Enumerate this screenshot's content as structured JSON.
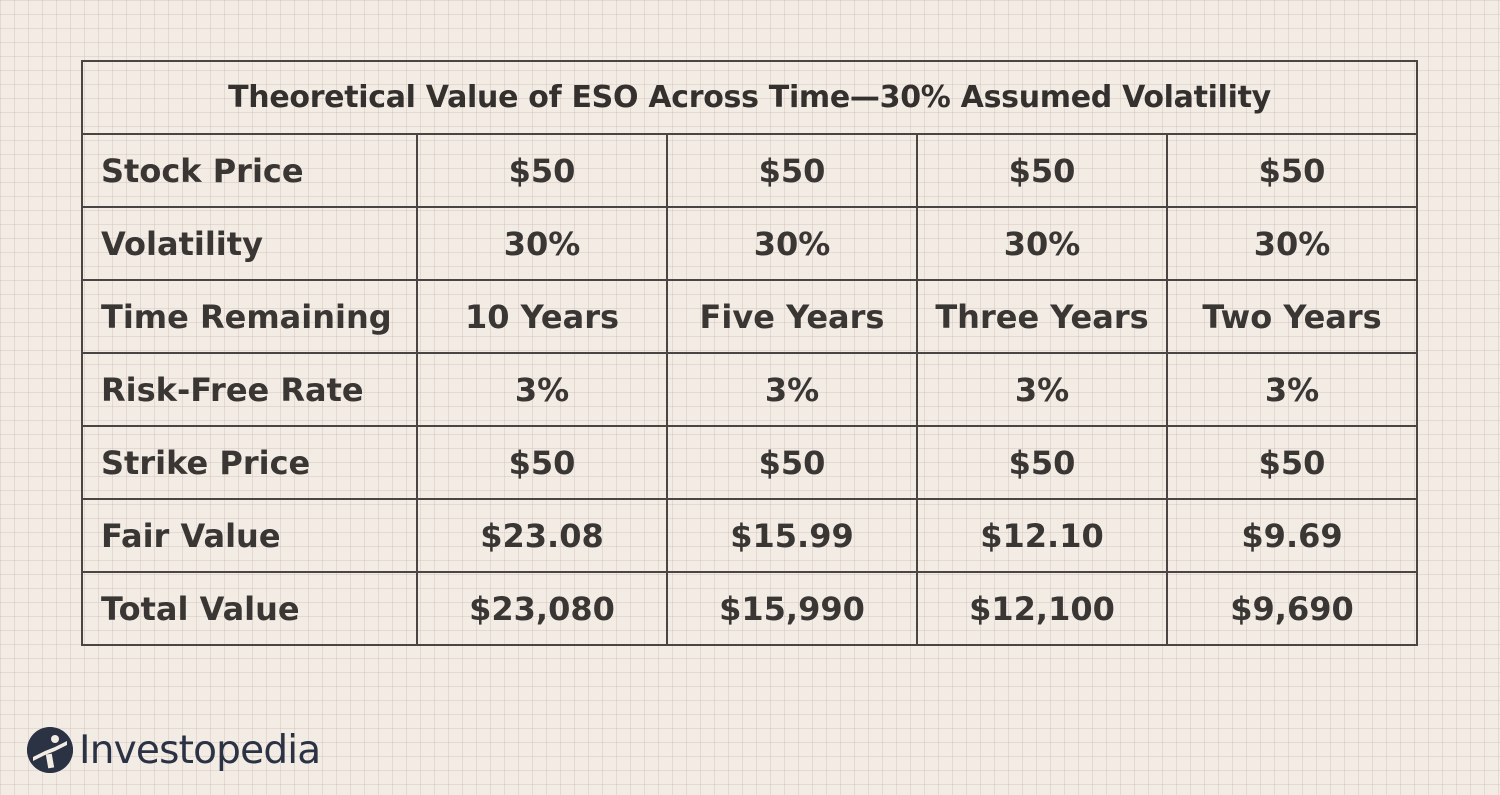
{
  "table": {
    "title": "Theoretical Value of ESO Across Time—30% Assumed Volatility",
    "rows": [
      {
        "label": "Stock Price",
        "values": [
          "$50",
          "$50",
          "$50",
          "$50"
        ]
      },
      {
        "label": "Volatility",
        "values": [
          "30%",
          "30%",
          "30%",
          "30%"
        ]
      },
      {
        "label": "Time Remaining",
        "values": [
          "10 Years",
          "Five Years",
          "Three Years",
          "Two Years"
        ]
      },
      {
        "label": "Risk-Free Rate",
        "values": [
          "3%",
          "3%",
          "3%",
          "3%"
        ]
      },
      {
        "label": "Strike Price",
        "values": [
          "$50",
          "$50",
          "$50",
          "$50"
        ]
      },
      {
        "label": "Fair Value",
        "values": [
          "$23.08",
          "$15.99",
          "$12.10",
          "$9.69"
        ]
      },
      {
        "label": "Total Value",
        "values": [
          "$23,080",
          "$15,990",
          "$12,100",
          "$9,690"
        ]
      }
    ]
  },
  "branding": {
    "name": "Investopedia",
    "logo_icon": "investopedia-logo-icon",
    "logo_color": "#2a3244"
  }
}
